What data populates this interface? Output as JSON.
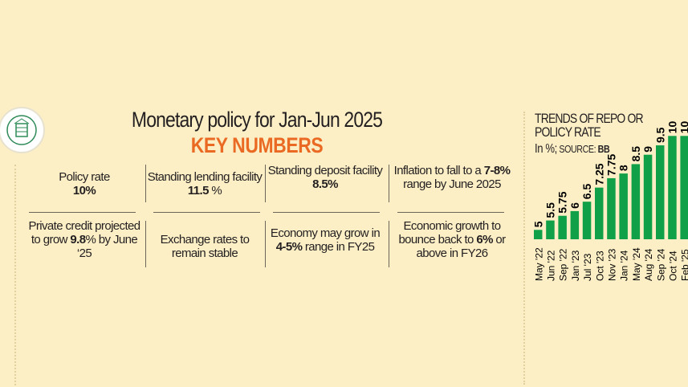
{
  "header": {
    "title": "Monetary policy for Jan-Jun 2025",
    "subtitle": "KEY NUMBERS"
  },
  "cells": [
    {
      "pre": "Policy rate",
      "bold": "10%",
      "post": ""
    },
    {
      "pre": "Standing lending facility ",
      "bold": "11.5",
      "post": " %"
    },
    {
      "pre": "Standing deposit facility ",
      "bold": "8.5%",
      "post": ""
    },
    {
      "pre": "Inflation to fall to a ",
      "bold": "7-8%",
      "post": " range by June 2025"
    },
    {
      "pre": "Private credit projected to grow ",
      "bold": "9.8",
      "post": "% by June ‘25"
    },
    {
      "pre": "Exchange rates to remain stable",
      "bold": "",
      "post": ""
    },
    {
      "pre": "Economy may grow in ",
      "bold": "4-5%",
      "post": " range in FY25"
    },
    {
      "pre": "Economic growth to bounce back to ",
      "bold": "6%",
      "post": " or above in FY26"
    }
  ],
  "colors": {
    "background": "#fcefc6",
    "accent": "#ea6a24",
    "bar": "#10a048"
  },
  "chart_data": {
    "type": "bar",
    "title": "TRENDS OF REPO OR POLICY RATE",
    "unit_label": "In %;",
    "source_label": "SOURCE:",
    "source": "BB",
    "categories": [
      "May '22",
      "Jun '22",
      "Sep '22",
      "Jan '23",
      "Jul '23",
      "Oct '23",
      "Nov '23",
      "Jan '24",
      "May '24",
      "Aug '24",
      "Sep '24",
      "Oct '24",
      "Feb '25"
    ],
    "values": [
      5,
      5.5,
      5.75,
      6,
      6.5,
      7.25,
      7.75,
      8,
      8.5,
      9,
      9.5,
      10,
      10
    ],
    "value_labels": [
      "5",
      "5.5",
      "5.75",
      "6",
      "6.5",
      "7.25",
      "7.75",
      "8",
      "8.5",
      "9",
      "9.5",
      "10",
      "10"
    ]
  }
}
